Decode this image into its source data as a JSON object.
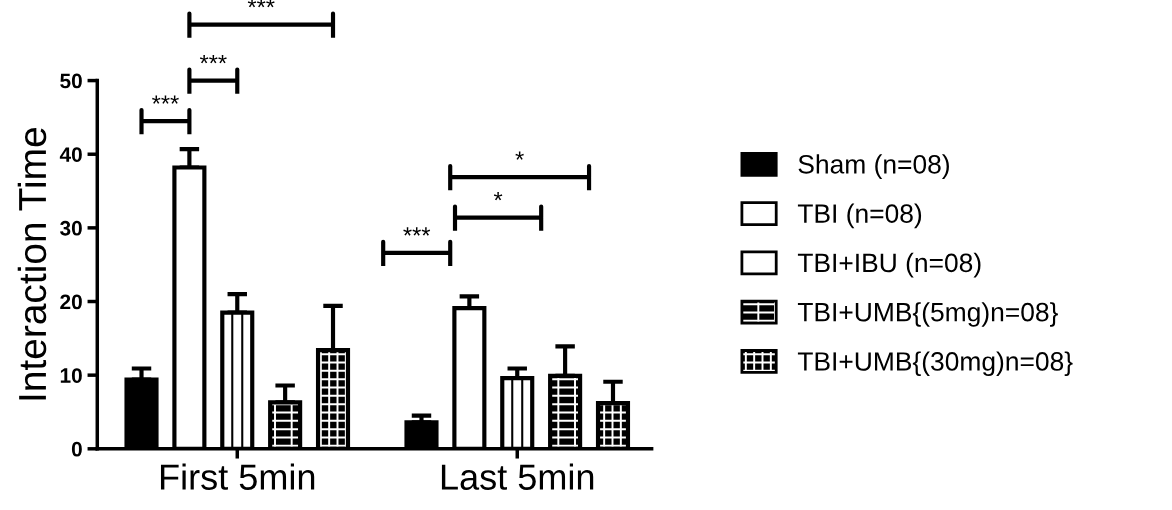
{
  "chart_data": {
    "type": "bar",
    "ylabel": "Interaction Time",
    "categories": [
      "First 5min",
      "Last 5min"
    ],
    "ylim": [
      0,
      50
    ],
    "yticks": [
      0,
      10,
      20,
      30,
      40,
      50
    ],
    "grid": false,
    "legend": "right",
    "series": [
      {
        "name": "Sham (n=08)",
        "color": "#000000",
        "values": [
          9.4,
          3.6
        ],
        "errors": [
          [
            9.4,
            10.9
          ],
          [
            3.6,
            4.5
          ]
        ]
      },
      {
        "name": "TBI (n=08)",
        "color": "#ffffff",
        "values": [
          38.2,
          19.1
        ],
        "errors": [
          [
            38.2,
            40.7
          ],
          [
            19.1,
            20.7
          ]
        ]
      },
      {
        "name": "TBI+IBU (n=08)",
        "color": "#ffffff",
        "values": [
          18.5,
          9.6
        ],
        "errors": [
          [
            18.5,
            21.0
          ],
          [
            9.6,
            10.9
          ]
        ]
      },
      {
        "name": "TBI+UMB{(5mg)n=08}",
        "color": "#000000",
        "values": [
          6.3,
          9.9
        ],
        "errors": [
          [
            6.3,
            8.6
          ],
          [
            9.9,
            13.9
          ]
        ]
      },
      {
        "name": "TBI+UMB{(30mg)n=08}",
        "color": "#000000",
        "values": [
          13.4,
          6.2
        ],
        "errors": [
          [
            13.4,
            19.4
          ],
          [
            6.2,
            9.1
          ]
        ]
      }
    ],
    "annotations": [
      "***",
      "***",
      "***",
      "***",
      "*",
      "*"
    ]
  }
}
